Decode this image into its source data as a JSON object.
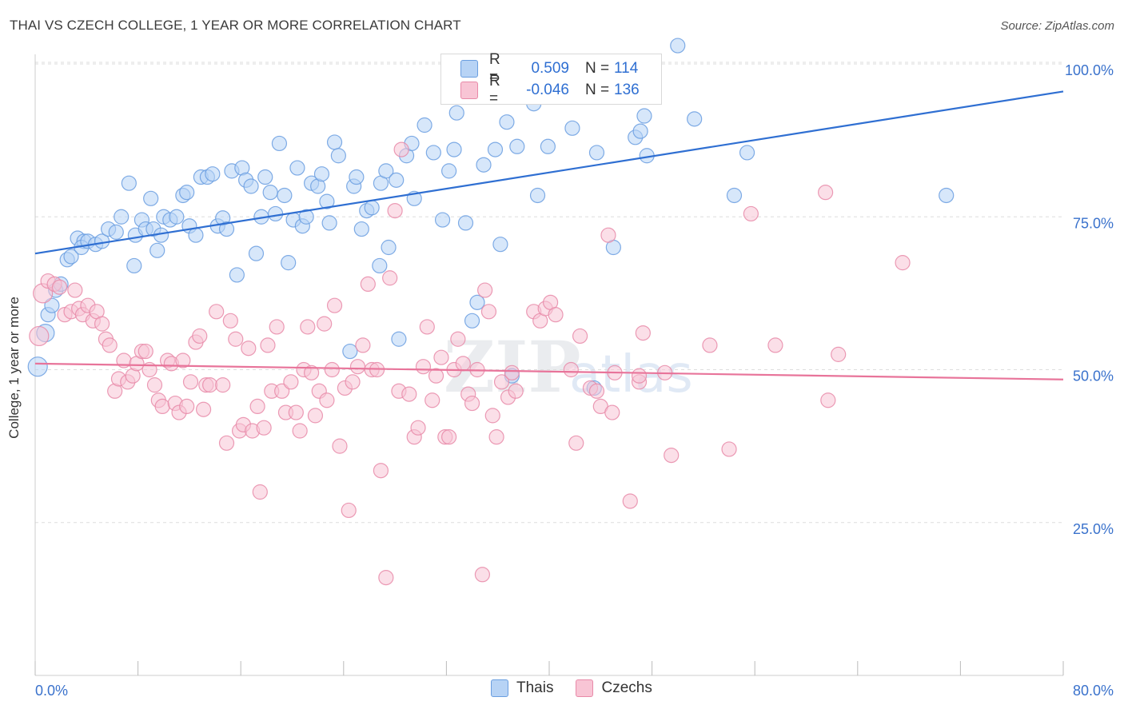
{
  "header": {
    "title": "THAI VS CZECH COLLEGE, 1 YEAR OR MORE CORRELATION CHART",
    "source": "Source: ZipAtlas.com"
  },
  "legend_top": {
    "rows": [
      {
        "r_label": "R =",
        "r_value": "0.509",
        "n_label": "N =",
        "n_value": "114"
      },
      {
        "r_label": "R =",
        "r_value": "-0.046",
        "n_label": "N =",
        "n_value": "136"
      }
    ]
  },
  "legend_bottom": {
    "items": [
      "Thais",
      "Czechs"
    ]
  },
  "colors": {
    "thai_fill": "#b7d3f5",
    "thai_stroke": "#6a9ee0",
    "thai_line": "#2f6fd2",
    "czech_fill": "#f8c5d5",
    "czech_stroke": "#e88aa8",
    "czech_line": "#e8749a",
    "tick_label": "#3a72cc",
    "grid": "#dddddd"
  },
  "chart_data": {
    "type": "scatter",
    "title": "THAI VS CZECH COLLEGE, 1 YEAR OR MORE CORRELATION CHART",
    "xlabel": "",
    "ylabel": "College, 1 year or more",
    "xlim": [
      0,
      80
    ],
    "ylim": [
      0,
      103
    ],
    "x_tick_labels": [
      "0.0%",
      "80.0%"
    ],
    "y_ticks": [
      25,
      50,
      75,
      100
    ],
    "y_tick_labels": [
      "25.0%",
      "50.0%",
      "75.0%",
      "100.0%"
    ],
    "grid": "horizontal dashed",
    "watermark": "ZIPatlas",
    "series": [
      {
        "name": "Thais",
        "r": 0.509,
        "n": 114,
        "trend": {
          "x0": 0,
          "y0": 69.0,
          "x1": 80,
          "y1": 95.5
        },
        "points": [
          [
            0.2,
            50.5
          ],
          [
            0.8,
            56
          ],
          [
            1,
            59
          ],
          [
            1.3,
            60.5
          ],
          [
            1.6,
            63
          ],
          [
            2,
            64
          ],
          [
            2.5,
            68
          ],
          [
            2.8,
            68.5
          ],
          [
            3.3,
            71.5
          ],
          [
            3.8,
            71
          ],
          [
            3.6,
            70
          ],
          [
            4.1,
            71
          ],
          [
            4.7,
            70.5
          ],
          [
            5.2,
            71
          ],
          [
            5.7,
            73
          ],
          [
            6.3,
            72.5
          ],
          [
            6.7,
            75
          ],
          [
            7.3,
            80.5
          ],
          [
            7.8,
            72
          ],
          [
            7.7,
            67
          ],
          [
            8.3,
            74.5
          ],
          [
            8.6,
            73
          ],
          [
            9,
            78
          ],
          [
            9.2,
            73
          ],
          [
            9.5,
            69.5
          ],
          [
            9.8,
            72
          ],
          [
            10,
            75
          ],
          [
            10.5,
            74.5
          ],
          [
            11,
            75
          ],
          [
            11.5,
            78.5
          ],
          [
            11.8,
            79
          ],
          [
            12,
            73.5
          ],
          [
            12.5,
            72
          ],
          [
            12.9,
            81.5
          ],
          [
            13.4,
            81.5
          ],
          [
            13.8,
            82
          ],
          [
            14.2,
            73.5
          ],
          [
            14.6,
            74.8
          ],
          [
            14.9,
            73
          ],
          [
            15.3,
            82.5
          ],
          [
            15.7,
            65.5
          ],
          [
            16.1,
            83
          ],
          [
            16.4,
            81
          ],
          [
            16.8,
            80
          ],
          [
            17.2,
            69
          ],
          [
            17.6,
            75
          ],
          [
            17.9,
            81.5
          ],
          [
            18.3,
            79
          ],
          [
            18.7,
            75.5
          ],
          [
            19,
            87
          ],
          [
            19.4,
            78.5
          ],
          [
            19.7,
            67.5
          ],
          [
            20.1,
            74.5
          ],
          [
            20.4,
            83
          ],
          [
            20.8,
            73.5
          ],
          [
            21.1,
            75
          ],
          [
            21.5,
            80.5
          ],
          [
            22,
            80
          ],
          [
            22.3,
            82
          ],
          [
            22.7,
            77.5
          ],
          [
            22.9,
            74
          ],
          [
            23.3,
            87.2
          ],
          [
            23.6,
            85
          ],
          [
            24.5,
            53
          ],
          [
            24.8,
            80
          ],
          [
            25,
            81.5
          ],
          [
            25.4,
            73
          ],
          [
            25.8,
            76
          ],
          [
            26.2,
            76.5
          ],
          [
            26.9,
            80.5
          ],
          [
            26.8,
            67
          ],
          [
            27.3,
            82.5
          ],
          [
            27.5,
            70
          ],
          [
            28.1,
            81
          ],
          [
            28.3,
            55
          ],
          [
            28.9,
            85
          ],
          [
            29.3,
            87
          ],
          [
            29.5,
            78
          ],
          [
            30.3,
            90
          ],
          [
            31,
            85.5
          ],
          [
            31.7,
            74.5
          ],
          [
            32.2,
            82.5
          ],
          [
            32.6,
            86
          ],
          [
            32.8,
            92
          ],
          [
            33.5,
            74
          ],
          [
            34,
            58
          ],
          [
            34.4,
            61
          ],
          [
            34.9,
            83.5
          ],
          [
            35.8,
            86
          ],
          [
            36.2,
            70.5
          ],
          [
            36.7,
            90.5
          ],
          [
            37.1,
            49
          ],
          [
            37.5,
            86.5
          ],
          [
            38.8,
            93.5
          ],
          [
            39.1,
            78.5
          ],
          [
            39.9,
            86.5
          ],
          [
            41.8,
            89.5
          ],
          [
            43.5,
            47
          ],
          [
            43.7,
            85.5
          ],
          [
            45,
            70
          ],
          [
            46.7,
            88
          ],
          [
            47.4,
            91.5
          ],
          [
            47.1,
            89
          ],
          [
            47.6,
            85
          ],
          [
            50,
            103
          ],
          [
            51.3,
            91
          ],
          [
            54.4,
            78.5
          ],
          [
            55.4,
            85.5
          ],
          [
            70.9,
            78.5
          ]
        ],
        "sizes_note": "two larger markers at x=0.2,y=50.5 and x=0.8,y=56"
      },
      {
        "name": "Czechs",
        "r": -0.046,
        "n": 136,
        "trend": {
          "x0": 0,
          "y0": 51.0,
          "x1": 80,
          "y1": 48.4
        },
        "points": [
          [
            0.3,
            55.5
          ],
          [
            0.6,
            62.5
          ],
          [
            1,
            64.5
          ],
          [
            1.5,
            64
          ],
          [
            1.9,
            63.5
          ],
          [
            2.3,
            59
          ],
          [
            2.8,
            59.5
          ],
          [
            3.1,
            63
          ],
          [
            3.4,
            60
          ],
          [
            3.7,
            59
          ],
          [
            4.1,
            60.5
          ],
          [
            4.5,
            58
          ],
          [
            4.8,
            59.5
          ],
          [
            5.2,
            57.5
          ],
          [
            5.5,
            55
          ],
          [
            5.8,
            54
          ],
          [
            6.2,
            46.5
          ],
          [
            6.5,
            48.5
          ],
          [
            6.9,
            51.5
          ],
          [
            7.2,
            48
          ],
          [
            7.6,
            49
          ],
          [
            7.9,
            51
          ],
          [
            8.3,
            53
          ],
          [
            8.6,
            53
          ],
          [
            8.9,
            50
          ],
          [
            9.3,
            47.5
          ],
          [
            9.6,
            45
          ],
          [
            9.9,
            44
          ],
          [
            10.3,
            51.5
          ],
          [
            10.6,
            51
          ],
          [
            10.9,
            44.5
          ],
          [
            11.2,
            43
          ],
          [
            11.5,
            51.5
          ],
          [
            11.8,
            44
          ],
          [
            12.1,
            48
          ],
          [
            12.5,
            54.5
          ],
          [
            12.8,
            55.5
          ],
          [
            13.1,
            43.5
          ],
          [
            13.3,
            47.5
          ],
          [
            13.6,
            47.5
          ],
          [
            14.1,
            59.5
          ],
          [
            14.6,
            47.5
          ],
          [
            14.9,
            38
          ],
          [
            15.2,
            58
          ],
          [
            15.6,
            55
          ],
          [
            15.9,
            40
          ],
          [
            16.2,
            41
          ],
          [
            16.6,
            53.5
          ],
          [
            16.9,
            40
          ],
          [
            17.3,
            44
          ],
          [
            17.8,
            40.5
          ],
          [
            17.5,
            30
          ],
          [
            18.1,
            54
          ],
          [
            18.4,
            46.5
          ],
          [
            18.8,
            57
          ],
          [
            19.2,
            46.5
          ],
          [
            19.5,
            43
          ],
          [
            19.9,
            48
          ],
          [
            20.3,
            43
          ],
          [
            20.6,
            40
          ],
          [
            20.9,
            50
          ],
          [
            21.2,
            57
          ],
          [
            21.5,
            49.5
          ],
          [
            21.8,
            42.5
          ],
          [
            22.1,
            46.5
          ],
          [
            22.5,
            57.5
          ],
          [
            22.7,
            45
          ],
          [
            23.1,
            50
          ],
          [
            23.3,
            60.5
          ],
          [
            23.7,
            37.5
          ],
          [
            24.1,
            47
          ],
          [
            24.4,
            27
          ],
          [
            24.7,
            48
          ],
          [
            25.1,
            50.5
          ],
          [
            25.5,
            54
          ],
          [
            25.9,
            64
          ],
          [
            26.2,
            50
          ],
          [
            26.6,
            50
          ],
          [
            26.9,
            33.5
          ],
          [
            27.3,
            16
          ],
          [
            27.6,
            65
          ],
          [
            28,
            76
          ],
          [
            28.3,
            46.5
          ],
          [
            28.5,
            86
          ],
          [
            29.1,
            46
          ],
          [
            29.5,
            39
          ],
          [
            29.8,
            40.5
          ],
          [
            30.2,
            50.5
          ],
          [
            30.5,
            57
          ],
          [
            30.9,
            45
          ],
          [
            31.2,
            49
          ],
          [
            31.6,
            52
          ],
          [
            31.9,
            39
          ],
          [
            32.2,
            39
          ],
          [
            32.6,
            50
          ],
          [
            32.9,
            55
          ],
          [
            33.3,
            51
          ],
          [
            33.7,
            46
          ],
          [
            34,
            44.5
          ],
          [
            34.4,
            50
          ],
          [
            34.8,
            16.5
          ],
          [
            35,
            63
          ],
          [
            35.3,
            59.5
          ],
          [
            35.6,
            42.5
          ],
          [
            35.9,
            39
          ],
          [
            36.3,
            48
          ],
          [
            36.8,
            45.5
          ],
          [
            37.1,
            49.5
          ],
          [
            37.4,
            46.5
          ],
          [
            38.8,
            59.5
          ],
          [
            39.3,
            58
          ],
          [
            39.7,
            60
          ],
          [
            40.1,
            61
          ],
          [
            40.5,
            59
          ],
          [
            41.7,
            50
          ],
          [
            42.1,
            38
          ],
          [
            42.4,
            55.5
          ],
          [
            43.2,
            47
          ],
          [
            43.7,
            46.5
          ],
          [
            44,
            44
          ],
          [
            44.6,
            72
          ],
          [
            44.9,
            43
          ],
          [
            45.1,
            49.5
          ],
          [
            46.3,
            28.5
          ],
          [
            47,
            48
          ],
          [
            47,
            49
          ],
          [
            47.3,
            56
          ],
          [
            49,
            49.5
          ],
          [
            49.5,
            36
          ],
          [
            52.5,
            54
          ],
          [
            54,
            37
          ],
          [
            55.7,
            75.5
          ],
          [
            57.6,
            54
          ],
          [
            61.5,
            79
          ],
          [
            61.7,
            45
          ],
          [
            62.5,
            52.5
          ],
          [
            67.5,
            67.5
          ]
        ],
        "sizes_note": "larger markers at left edge near y=55.5 and y=62.5"
      }
    ]
  }
}
